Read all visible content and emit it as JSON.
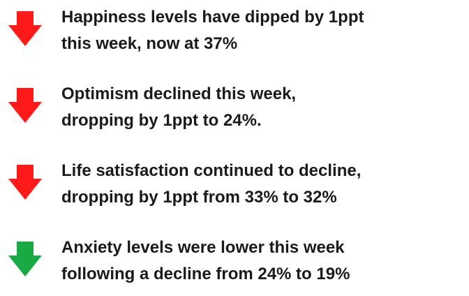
{
  "items": [
    {
      "lines": [
        "Happiness levels have dipped by 1ppt",
        "this week, now at 37%"
      ]
    },
    {
      "lines": [
        "Optimism declined this week,",
        "dropping by 1ppt to 24%."
      ]
    },
    {
      "lines": [
        "Life satisfaction continued to decline,",
        "dropping by 1ppt from 33% to 32%"
      ]
    },
    {
      "lines": [
        "Anxiety levels were lower this week",
        "following a decline from 24% to 19%"
      ]
    }
  ]
}
